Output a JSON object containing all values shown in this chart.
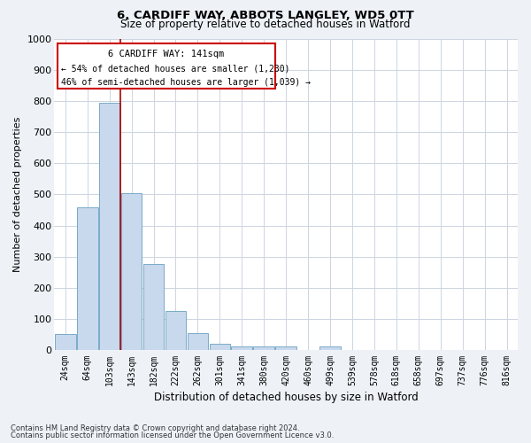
{
  "title1": "6, CARDIFF WAY, ABBOTS LANGLEY, WD5 0TT",
  "title2": "Size of property relative to detached houses in Watford",
  "xlabel": "Distribution of detached houses by size in Watford",
  "ylabel": "Number of detached properties",
  "bar_color": "#c8d8ed",
  "bar_edge_color": "#7aaac8",
  "categories": [
    "24sqm",
    "64sqm",
    "103sqm",
    "143sqm",
    "182sqm",
    "222sqm",
    "262sqm",
    "301sqm",
    "341sqm",
    "380sqm",
    "420sqm",
    "460sqm",
    "499sqm",
    "539sqm",
    "578sqm",
    "618sqm",
    "658sqm",
    "697sqm",
    "737sqm",
    "776sqm",
    "816sqm"
  ],
  "values": [
    50,
    460,
    795,
    505,
    275,
    125,
    55,
    20,
    10,
    10,
    10,
    0,
    10,
    0,
    0,
    0,
    0,
    0,
    0,
    0,
    0
  ],
  "ylim": [
    0,
    1000
  ],
  "yticks": [
    0,
    100,
    200,
    300,
    400,
    500,
    600,
    700,
    800,
    900,
    1000
  ],
  "property_line_x": 2.5,
  "annotation_title": "6 CARDIFF WAY: 141sqm",
  "annotation_line1": "← 54% of detached houses are smaller (1,230)",
  "annotation_line2": "46% of semi-detached houses are larger (1,039) →",
  "footer1": "Contains HM Land Registry data © Crown copyright and database right 2024.",
  "footer2": "Contains public sector information licensed under the Open Government Licence v3.0.",
  "bg_color": "#eef2f7",
  "plot_bg_color": "#ffffff",
  "grid_color": "#ccd5e0"
}
